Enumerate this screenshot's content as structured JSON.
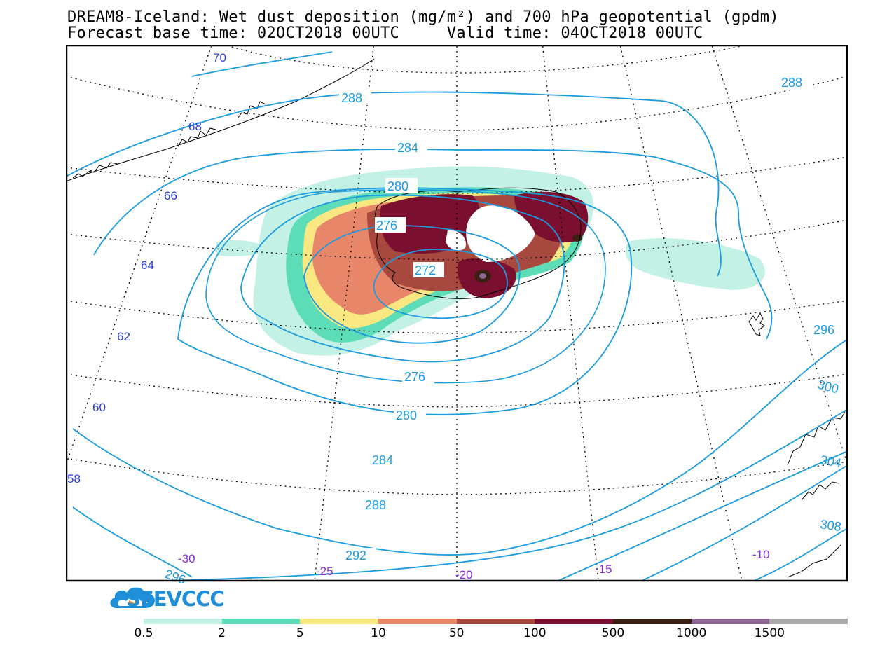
{
  "title": {
    "line1": "DREAM8-Iceland: Wet dust deposition (mg/m²) and 700 hPa geopotential (gpdm)",
    "line2": "Forecast base time: 02OCT2018 00UTC     Valid time: 04OCT2018 00UTC"
  },
  "map": {
    "lat_labels": [
      "70",
      "68",
      "66",
      "64",
      "62",
      "60",
      "58"
    ],
    "lon_labels": [
      "-30",
      "-25",
      "-20",
      "-15",
      "-10"
    ],
    "contour_labels": [
      "288",
      "288",
      "284",
      "280",
      "276",
      "272",
      "276",
      "280",
      "284",
      "288",
      "292",
      "296",
      "296",
      "300",
      "304",
      "308"
    ]
  },
  "logo": {
    "text": "SEEVCCC"
  },
  "legend": {
    "colors": [
      "#c4f1e6",
      "#5ddcb8",
      "#f9e882",
      "#e8866a",
      "#a8493f",
      "#7b0f30",
      "#3a1f14",
      "#8b6690",
      "#aaaaaa"
    ],
    "labels": [
      "0.5",
      "2",
      "5",
      "10",
      "50",
      "100",
      "500",
      "1000",
      "1500"
    ]
  }
}
